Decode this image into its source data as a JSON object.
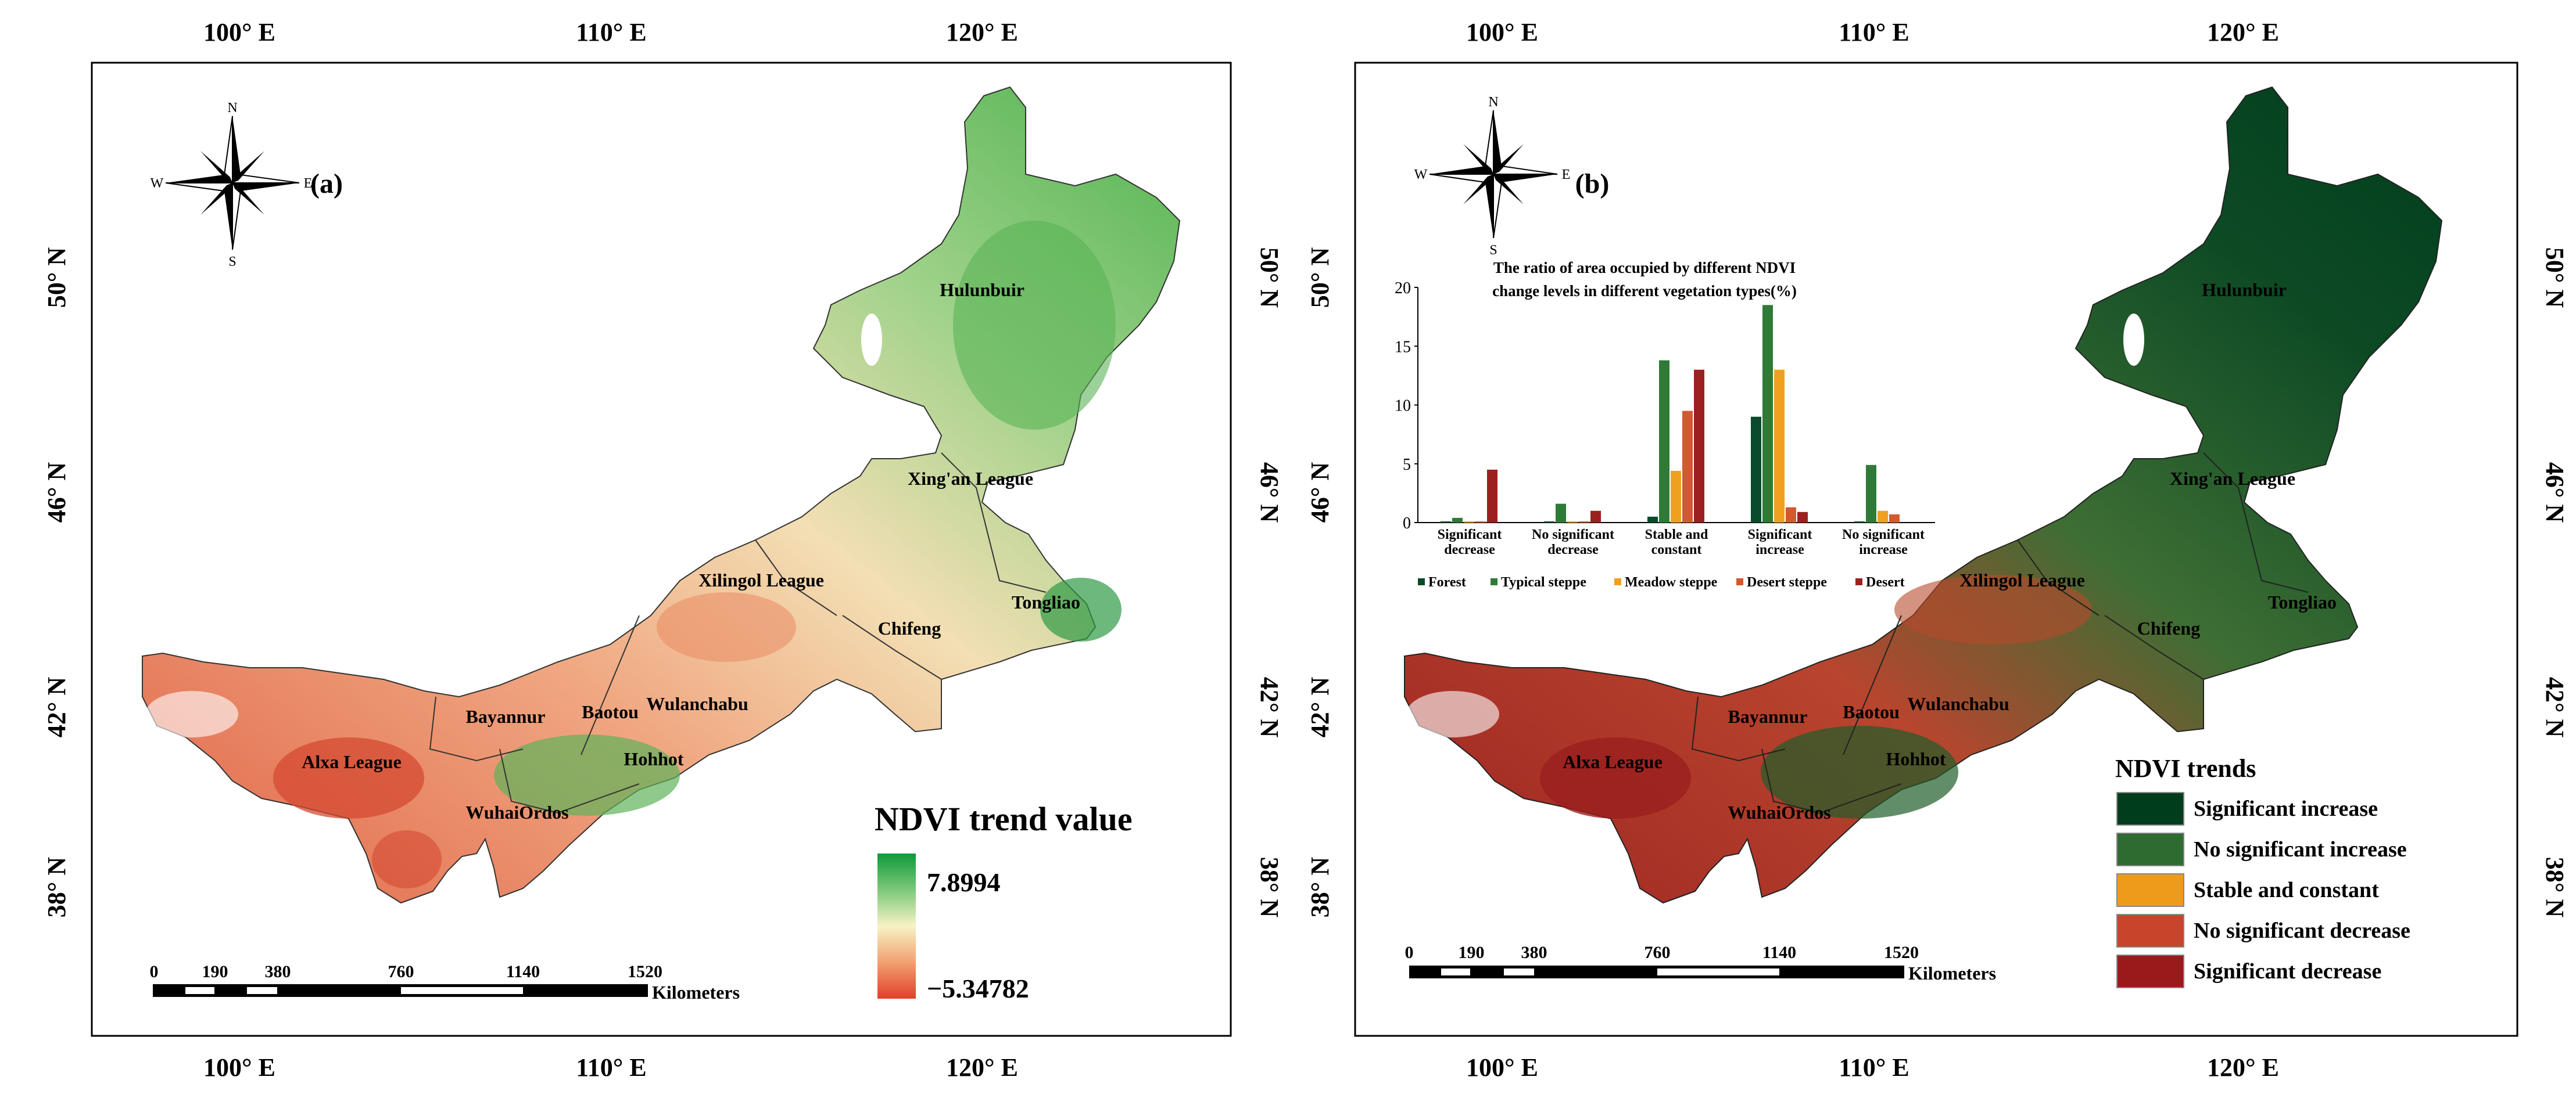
{
  "panel_a": {
    "label": "(a)",
    "top_lon": [
      "100° E",
      "110° E",
      "120° E"
    ],
    "bottom_lon": [
      "100° E",
      "110° E",
      "120° E"
    ],
    "left_lat": [
      "50° N",
      "46° N",
      "42° N",
      "38° N"
    ],
    "right_lat": [
      "50° N",
      "46° N",
      "42° N",
      "38° N"
    ],
    "regions": [
      "Hulunbuir",
      "Xing'an League",
      "Xilingol League",
      "Tongliao",
      "Chifeng",
      "Bayannur",
      "Baotou",
      "Wulanchabu",
      "Hohhot",
      "Alxa League",
      "WuhaiOrdos"
    ],
    "legend": {
      "title": "NDVI trend value",
      "max": "7.8994",
      "min": "−5.34782"
    },
    "scale": {
      "ticks": [
        "0",
        "190",
        "380",
        "760",
        "1140",
        "1520"
      ],
      "unit": "Kilometers"
    },
    "compass": {
      "n": "N",
      "s": "S",
      "e": "E",
      "w": "W"
    }
  },
  "panel_b": {
    "label": "(b)",
    "top_lon": [
      "100° E",
      "110° E",
      "120° E"
    ],
    "bottom_lon": [
      "100° E",
      "110° E",
      "120° E"
    ],
    "left_lat": [
      "50° N",
      "46° N",
      "42° N",
      "38° N"
    ],
    "right_lat": [
      "50° N",
      "46° N",
      "42° N",
      "38° N"
    ],
    "regions": [
      "Hulunbuir",
      "Xing'an League",
      "Xilingol League",
      "Tongliao",
      "Chifeng",
      "Bayannur",
      "Baotou",
      "Wulanchabu",
      "Hohhot",
      "Alxa League",
      "WuhaiOrdos"
    ],
    "legend": {
      "title": "NDVI trends",
      "items": [
        {
          "label": "Significant increase",
          "color": "#003d1d"
        },
        {
          "label": "No significant increase",
          "color": "#2e6b30"
        },
        {
          "label": "Stable and constant",
          "color": "#ee9a1a"
        },
        {
          "label": "No significant decrease",
          "color": "#c8442a"
        },
        {
          "label": "Significant decrease",
          "color": "#9a1a1c"
        }
      ]
    },
    "scale": {
      "ticks": [
        "0",
        "190",
        "380",
        "760",
        "1140",
        "1520"
      ],
      "unit": "Kilometers"
    },
    "compass": {
      "n": "N",
      "s": "S",
      "e": "E",
      "w": "W"
    }
  },
  "chart_data": {
    "type": "bar",
    "title": "The ratio of area occupied by different NDVI change levels in different vegetation types(%)",
    "title_lines": [
      "The ratio of area occupied by different NDVI",
      "change levels in different vegetation types(%)"
    ],
    "categories": [
      "Significant decrease",
      "No significant decrease",
      "Stable and constant",
      "Significant increase",
      "No significant increase"
    ],
    "category_lines": [
      [
        "Significant",
        "decrease"
      ],
      [
        "No significant",
        "decrease"
      ],
      [
        "Stable and",
        "constant"
      ],
      [
        "Significant",
        "increase"
      ],
      [
        "No significant",
        "increase"
      ]
    ],
    "series": [
      {
        "name": "Forest",
        "color": "#0b4a2a",
        "values": [
          0.1,
          0.1,
          0.5,
          9.0,
          0.1
        ]
      },
      {
        "name": "Typical steppe",
        "color": "#2f7a36",
        "values": [
          0.4,
          1.6,
          13.8,
          18.5,
          4.9
        ]
      },
      {
        "name": "Meadow steppe",
        "color": "#f0a020",
        "values": [
          0.1,
          0.1,
          4.4,
          13.0,
          1.0
        ]
      },
      {
        "name": "Desert steppe",
        "color": "#d15a2e",
        "values": [
          0.1,
          0.1,
          9.5,
          1.3,
          0.7
        ]
      },
      {
        "name": "Desert",
        "color": "#9c2020",
        "values": [
          4.5,
          1.0,
          13.0,
          0.9,
          0.0
        ]
      }
    ],
    "yticks": [
      "0",
      "5",
      "10",
      "15",
      "20"
    ],
    "ylim": [
      0,
      20
    ],
    "xlabel": "",
    "ylabel": ""
  }
}
